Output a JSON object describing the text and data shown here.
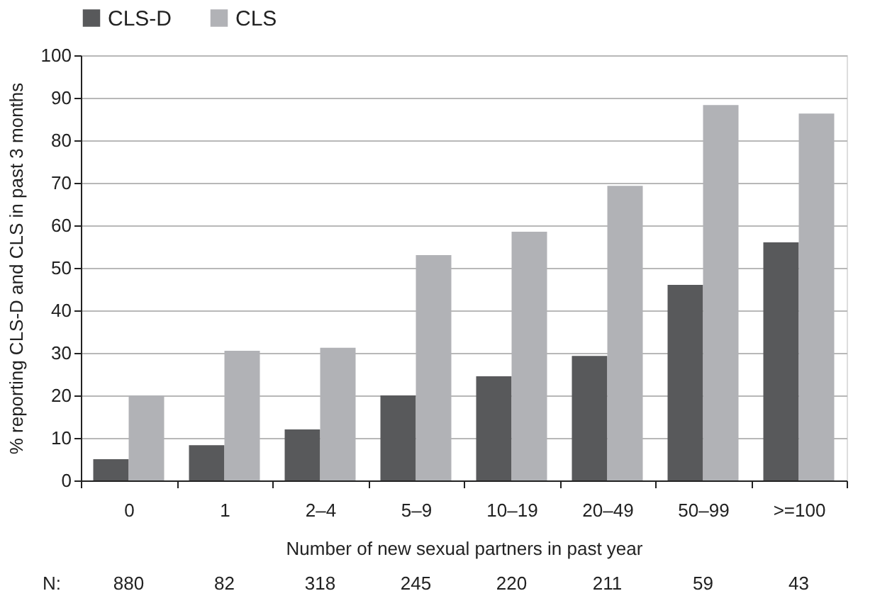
{
  "chart_data": {
    "type": "bar",
    "categories": [
      "0",
      "1",
      "2–4",
      "5–9",
      "10–19",
      "20–49",
      "50–99",
      ">=100"
    ],
    "series": [
      {
        "name": "CLS-D",
        "color": "#58595b",
        "values": [
          5,
          8.3,
          12,
          20,
          24.5,
          29.3,
          46,
          56
        ]
      },
      {
        "name": "CLS",
        "color": "#b1b2b6",
        "values": [
          20,
          30.5,
          31.2,
          53,
          58.5,
          69.3,
          88.3,
          86.3
        ]
      }
    ],
    "xlabel": "Number of new sexual partners in past year",
    "ylabel": "% reporting CLS-D and CLS in past 3 months",
    "ylim": [
      0,
      100
    ],
    "yticks": [
      0,
      10,
      20,
      30,
      40,
      50,
      60,
      70,
      80,
      90,
      100
    ],
    "grid": "y",
    "legend": "top",
    "annotations": [
      "N:",
      "880",
      "82",
      "318",
      "245",
      "220",
      "211",
      "59",
      "43"
    ]
  }
}
